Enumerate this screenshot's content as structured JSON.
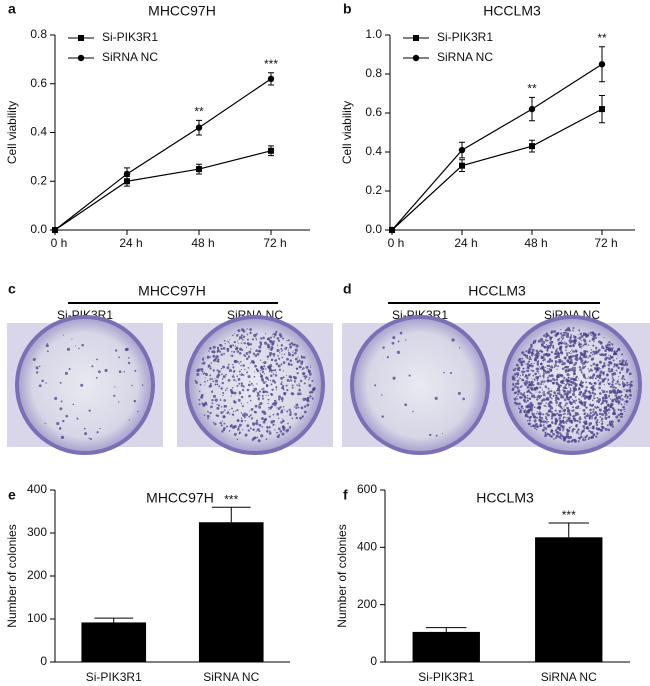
{
  "chart_data": [
    {
      "type": "line",
      "panel_label": "a",
      "title": "MHCC97H",
      "ylabel": "Cell viability",
      "categories": [
        "0 h",
        "24 h",
        "48 h",
        "72 h"
      ],
      "series": [
        {
          "name": "Si-PIK3R1",
          "color": "#000000",
          "marker": "square",
          "values": [
            0,
            0.2,
            0.25,
            0.325
          ],
          "errors": [
            0,
            0.02,
            0.02,
            0.02
          ]
        },
        {
          "name": "SiRNA NC",
          "color": "#000000",
          "marker": "circle",
          "values": [
            0,
            0.23,
            0.42,
            0.62
          ],
          "errors": [
            0,
            0.025,
            0.03,
            0.025
          ]
        }
      ],
      "significance": [
        null,
        null,
        "**",
        "***"
      ],
      "ylim": [
        0,
        0.8
      ],
      "yticks": [
        {
          "value": 0,
          "label": "0.0"
        },
        0.2,
        0.4,
        0.6,
        0.8
      ]
    },
    {
      "type": "line",
      "panel_label": "b",
      "title": "HCCLM3",
      "ylabel": "Cell viability",
      "categories": [
        "0 h",
        "24 h",
        "48 h",
        "72 h"
      ],
      "series": [
        {
          "name": "Si-PIK3R1",
          "color": "#000000",
          "marker": "square",
          "values": [
            0,
            0.33,
            0.43,
            0.62
          ],
          "errors": [
            0,
            0.03,
            0.03,
            0.07
          ]
        },
        {
          "name": "SiRNA NC",
          "color": "#000000",
          "marker": "circle",
          "values": [
            0,
            0.41,
            0.62,
            0.85
          ],
          "errors": [
            0,
            0.04,
            0.06,
            0.09
          ]
        }
      ],
      "significance": [
        null,
        null,
        "**",
        "**"
      ],
      "ylim": [
        0,
        1
      ],
      "yticks": [
        {
          "value": 0,
          "label": "0.0"
        },
        0.2,
        0.4,
        0.6,
        0.8,
        {
          "value": 1,
          "label": "1.0"
        }
      ]
    },
    {
      "type": "bar",
      "panel_label": "e",
      "title": "MHCC97H",
      "ylabel": "Number of colonies",
      "categories": [
        "Si-PIK3R1",
        "SiRNA NC"
      ],
      "values": [
        92,
        325
      ],
      "errors": [
        10,
        35
      ],
      "color": "#000000",
      "significance": [
        null,
        "***"
      ],
      "ylim": [
        0,
        400
      ],
      "yticks": [
        0,
        100,
        200,
        300,
        400
      ]
    },
    {
      "type": "bar",
      "panel_label": "f",
      "title": "HCCLM3",
      "ylabel": "Number of colonies",
      "categories": [
        "Si-PIK3R1",
        "SiRNA NC"
      ],
      "values": [
        105,
        435
      ],
      "errors": [
        15,
        50
      ],
      "color": "#000000",
      "significance": [
        null,
        "***"
      ],
      "ylim": [
        0,
        600
      ],
      "yticks": [
        0,
        200,
        400,
        600
      ]
    }
  ],
  "images": [
    {
      "panel_label": "c",
      "title": "MHCC97H",
      "labels": [
        "Si-PIK3R1",
        "SiRNA NC"
      ]
    },
    {
      "panel_label": "d",
      "title": "HCCLM3",
      "labels": [
        "Si-PIK3R1",
        "SiRNA NC"
      ]
    }
  ]
}
